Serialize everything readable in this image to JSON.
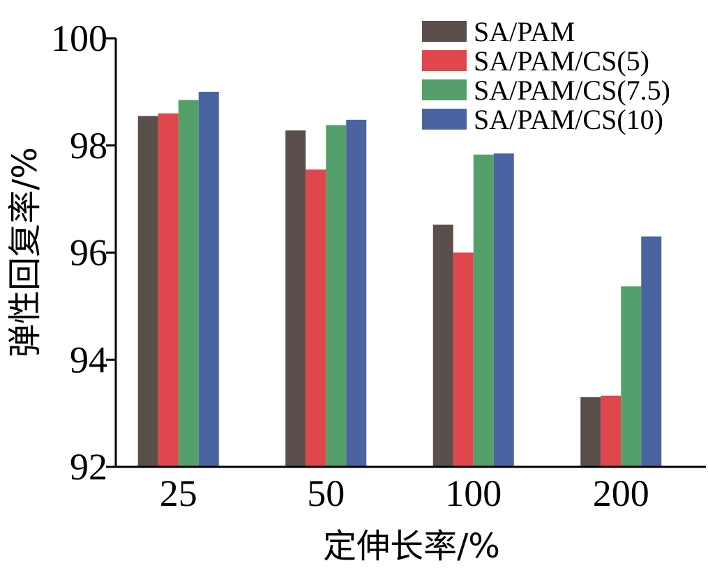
{
  "chart_data": {
    "type": "bar",
    "xlabel": "定伸长率/%",
    "ylabel": "弹性回复率/%",
    "categories": [
      "25",
      "50",
      "100",
      "200"
    ],
    "ylim": [
      92,
      100
    ],
    "yticks": [
      "92",
      "94",
      "96",
      "98",
      "100"
    ],
    "series": [
      {
        "name": "SA/PAM",
        "color": "#5a4f4a",
        "values": [
          98.55,
          98.28,
          96.52,
          93.3
        ]
      },
      {
        "name": "SA/PAM/CS(5)",
        "color": "#e0474c",
        "values": [
          98.6,
          97.55,
          96.0,
          93.33
        ]
      },
      {
        "name": "SA/PAM/CS(7.5)",
        "color": "#55a06a",
        "values": [
          98.85,
          98.38,
          97.83,
          95.37
        ]
      },
      {
        "name": "SA/PAM/CS(10)",
        "color": "#4a64a2",
        "values": [
          99.0,
          98.48,
          97.85,
          96.3
        ]
      }
    ],
    "legend_position": "top-right",
    "grid": false
  }
}
